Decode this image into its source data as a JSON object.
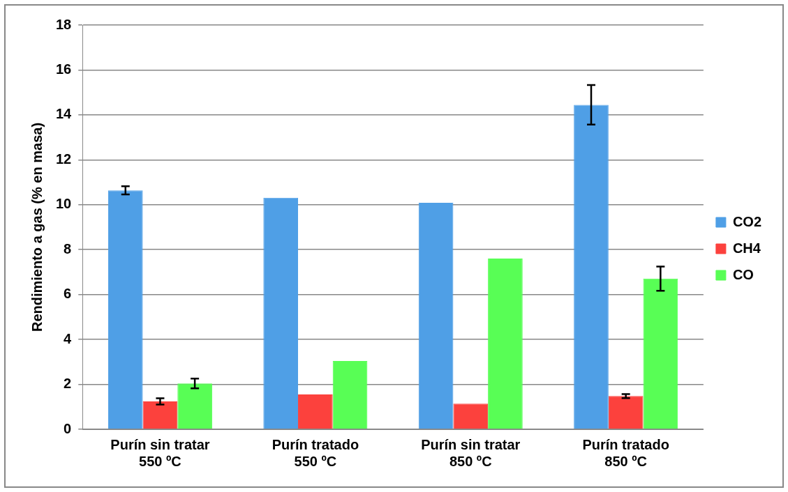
{
  "chart_data": {
    "type": "bar",
    "ylabel": "Rendimiento a gas (% en masa)",
    "categories": [
      "Purín sin tratar\n550 ºC",
      "Purín tratado\n550 ºC",
      "Purín sin tratar\n850 ºC",
      "Purín tratado\n850 ºC"
    ],
    "series": [
      {
        "name": "CO2",
        "color": "#4f9fe6",
        "values": [
          10.64,
          10.31,
          10.09,
          14.45
        ],
        "errors": [
          0.18,
          null,
          null,
          0.88
        ]
      },
      {
        "name": "CH4",
        "color": "#fc413d",
        "values": [
          1.24,
          1.55,
          1.14,
          1.48
        ],
        "errors": [
          0.14,
          null,
          null,
          0.09
        ]
      },
      {
        "name": "CO",
        "color": "#58fe55",
        "values": [
          2.04,
          3.04,
          7.6,
          6.71
        ],
        "errors": [
          0.22,
          null,
          null,
          0.54
        ]
      }
    ],
    "ylim": [
      0,
      18
    ],
    "yticks": [
      0,
      2,
      4,
      6,
      8,
      10,
      12,
      14,
      16,
      18
    ],
    "grid": "y",
    "legend": "right"
  }
}
